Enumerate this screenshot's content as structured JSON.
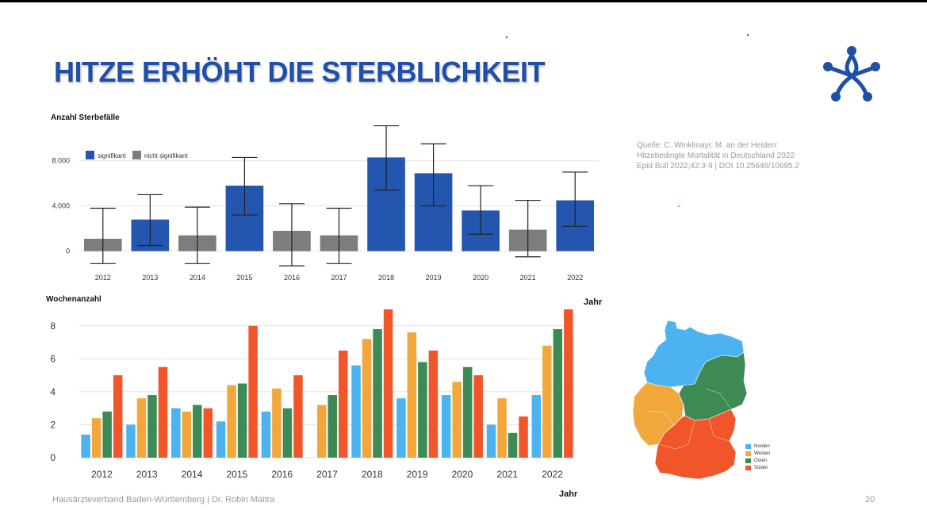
{
  "slide": {
    "title": "HITZE ERHÖHT DIE STERBLICHKEIT",
    "source_lines": [
      "Quelle: C. Winklmayr, M. an der Heiden:",
      "Hitzebedingte Mortalität in Deutschland 2022",
      "Epid Bull 2022;42:3-9 | DOI 10.25646/10695.2"
    ],
    "footer": "Hausärzteverband Baden-Württemberg | Dr. Robin Maitra",
    "page_number": "20",
    "logo_icon": "hausarzt-logo-icon",
    "colors": {
      "title": "#1f4fa6",
      "significant": "#2456b0",
      "not_significant": "#7d7d7d",
      "norden": "#4db3f0",
      "westen": "#f2a73b",
      "osten": "#3d8a55",
      "sueden": "#f0562a"
    }
  },
  "chart_data": [
    {
      "type": "bar",
      "title": "",
      "ylabel": "Anzahl Sterbefälle",
      "xlabel": "Jahr",
      "ylim": [
        -1500,
        11000
      ],
      "yticks": [
        0,
        4000,
        8000
      ],
      "ytick_labels": [
        "0",
        "4.000",
        "8.000"
      ],
      "grid": true,
      "legend": {
        "position": "top-left",
        "entries": [
          "signifikant",
          "nicht signifikant"
        ]
      },
      "categories": [
        "2012",
        "2013",
        "2014",
        "2015",
        "2016",
        "2017",
        "2018",
        "2019",
        "2020",
        "2021",
        "2022"
      ],
      "values": [
        1100,
        2800,
        1400,
        5800,
        1800,
        1400,
        8300,
        6900,
        3600,
        1900,
        4500
      ],
      "ci_low": [
        -1100,
        500,
        -1100,
        3200,
        -1300,
        -1100,
        5400,
        4000,
        1500,
        -500,
        2200
      ],
      "ci_high": [
        3800,
        5000,
        3900,
        8300,
        4200,
        3800,
        11100,
        9500,
        5800,
        4500,
        7000
      ],
      "significant": [
        false,
        true,
        false,
        true,
        false,
        false,
        true,
        true,
        true,
        false,
        true
      ]
    },
    {
      "type": "bar",
      "title": "",
      "ylabel": "Wochenanzahl",
      "xlabel": "Jahr",
      "ylim": [
        0,
        9
      ],
      "yticks": [
        0,
        2,
        4,
        6,
        8
      ],
      "grid": true,
      "categories": [
        "2012",
        "2013",
        "2014",
        "2015",
        "2016",
        "2017",
        "2018",
        "2019",
        "2020",
        "2021",
        "2022"
      ],
      "series": [
        {
          "name": "Norden",
          "values": [
            1.4,
            2.0,
            3.0,
            2.2,
            2.8,
            0,
            5.6,
            3.6,
            3.8,
            2.0,
            3.8
          ]
        },
        {
          "name": "Westen",
          "values": [
            2.4,
            3.6,
            2.8,
            4.4,
            4.2,
            3.2,
            7.2,
            7.6,
            4.6,
            3.6,
            6.8
          ]
        },
        {
          "name": "Osten",
          "values": [
            2.8,
            3.8,
            3.2,
            4.5,
            3.0,
            3.8,
            7.8,
            5.8,
            5.5,
            1.5,
            7.8
          ]
        },
        {
          "name": "Süden",
          "values": [
            5.0,
            5.5,
            3.0,
            8.0,
            5.0,
            6.5,
            9.0,
            6.5,
            5.0,
            2.5,
            9.0
          ]
        }
      ]
    }
  ],
  "map_legend": [
    "Norden",
    "Westen",
    "Osten",
    "Süden"
  ]
}
